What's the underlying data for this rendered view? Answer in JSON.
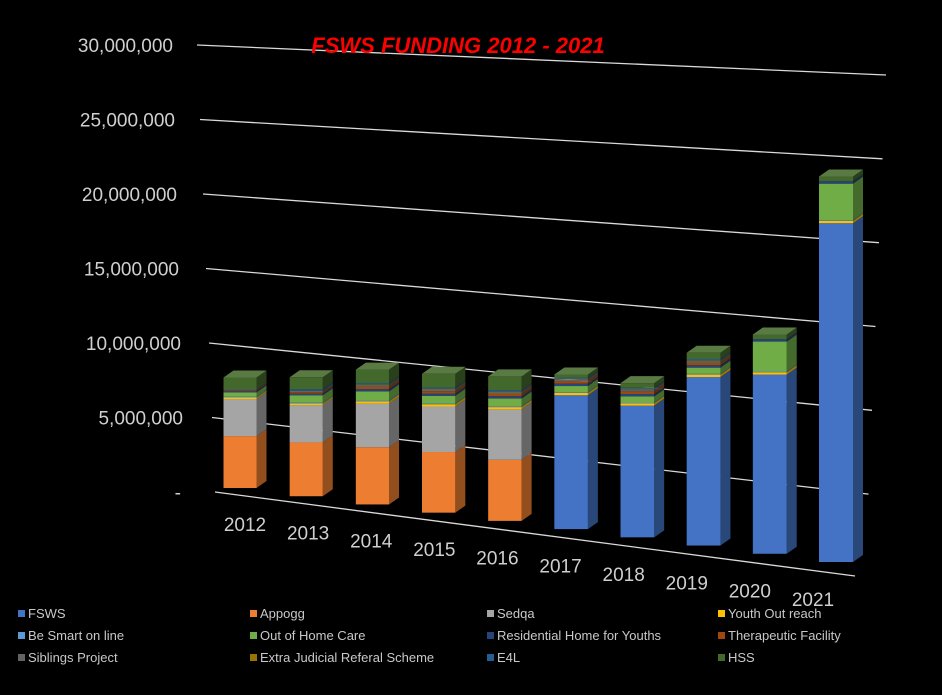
{
  "chart_data": {
    "type": "bar",
    "stacked": true,
    "title": "FSWS FUNDING  2012 - 2021",
    "xlabel": "",
    "ylabel": "",
    "ylim": [
      0,
      30000000
    ],
    "yticks": [
      0,
      5000000,
      10000000,
      15000000,
      20000000,
      25000000,
      30000000
    ],
    "ytick_labels": [
      "-",
      "5,000,000",
      "10,000,000",
      "15,000,000",
      "20,000,000",
      "25,000,000",
      "30,000,000"
    ],
    "grid": true,
    "legend_position": "bottom",
    "categories": [
      "2012",
      "2013",
      "2014",
      "2015",
      "2016",
      "2017",
      "2018",
      "2019",
      "2020",
      "2021"
    ],
    "series": [
      {
        "name": "FSWS",
        "color": "#4472C4",
        "values": [
          0,
          0,
          0,
          0,
          0,
          8700000,
          8500000,
          10800000,
          11400000,
          21400000
        ]
      },
      {
        "name": "Appogg",
        "color": "#ED7D31",
        "values": [
          3500000,
          3600000,
          3800000,
          4000000,
          4000000,
          0,
          0,
          0,
          0,
          0
        ]
      },
      {
        "name": "Sedqa",
        "color": "#A5A5A5",
        "values": [
          2500000,
          2500000,
          2900000,
          3000000,
          3300000,
          0,
          0,
          0,
          0,
          0
        ]
      },
      {
        "name": "Youth Out reach",
        "color": "#FFC000",
        "values": [
          100000,
          100000,
          150000,
          150000,
          150000,
          150000,
          150000,
          150000,
          150000,
          150000
        ]
      },
      {
        "name": "Be Smart on line",
        "color": "#5B9BD5",
        "values": [
          50000,
          60000,
          60000,
          60000,
          60000,
          50000,
          50000,
          50000,
          50000,
          50000
        ]
      },
      {
        "name": "Out of Home Care",
        "color": "#70AD47",
        "values": [
          300000,
          500000,
          600000,
          500000,
          500000,
          400000,
          400000,
          400000,
          1900000,
          2300000
        ]
      },
      {
        "name": "Residential  Home for Youths",
        "color": "#264478",
        "values": [
          100000,
          100000,
          150000,
          150000,
          150000,
          150000,
          150000,
          150000,
          150000,
          150000
        ]
      },
      {
        "name": "Therapeutic Facility",
        "color": "#9E480E",
        "values": [
          50000,
          100000,
          150000,
          150000,
          150000,
          150000,
          150000,
          150000,
          0,
          0
        ]
      },
      {
        "name": "Siblings Project",
        "color": "#636363",
        "values": [
          50000,
          100000,
          100000,
          100000,
          100000,
          100000,
          100000,
          100000,
          0,
          0
        ]
      },
      {
        "name": "Extra Judicial Referal Scheme",
        "color": "#997300",
        "values": [
          0,
          0,
          50000,
          50000,
          50000,
          50000,
          50000,
          50000,
          0,
          0
        ]
      },
      {
        "name": "E4L",
        "color": "#255E91",
        "values": [
          0,
          100000,
          100000,
          100000,
          100000,
          100000,
          100000,
          100000,
          0,
          0
        ]
      },
      {
        "name": "HSS",
        "color": "#43682B",
        "values": [
          800000,
          800000,
          900000,
          900000,
          900000,
          200000,
          300000,
          400000,
          300000,
          300000
        ]
      }
    ]
  }
}
